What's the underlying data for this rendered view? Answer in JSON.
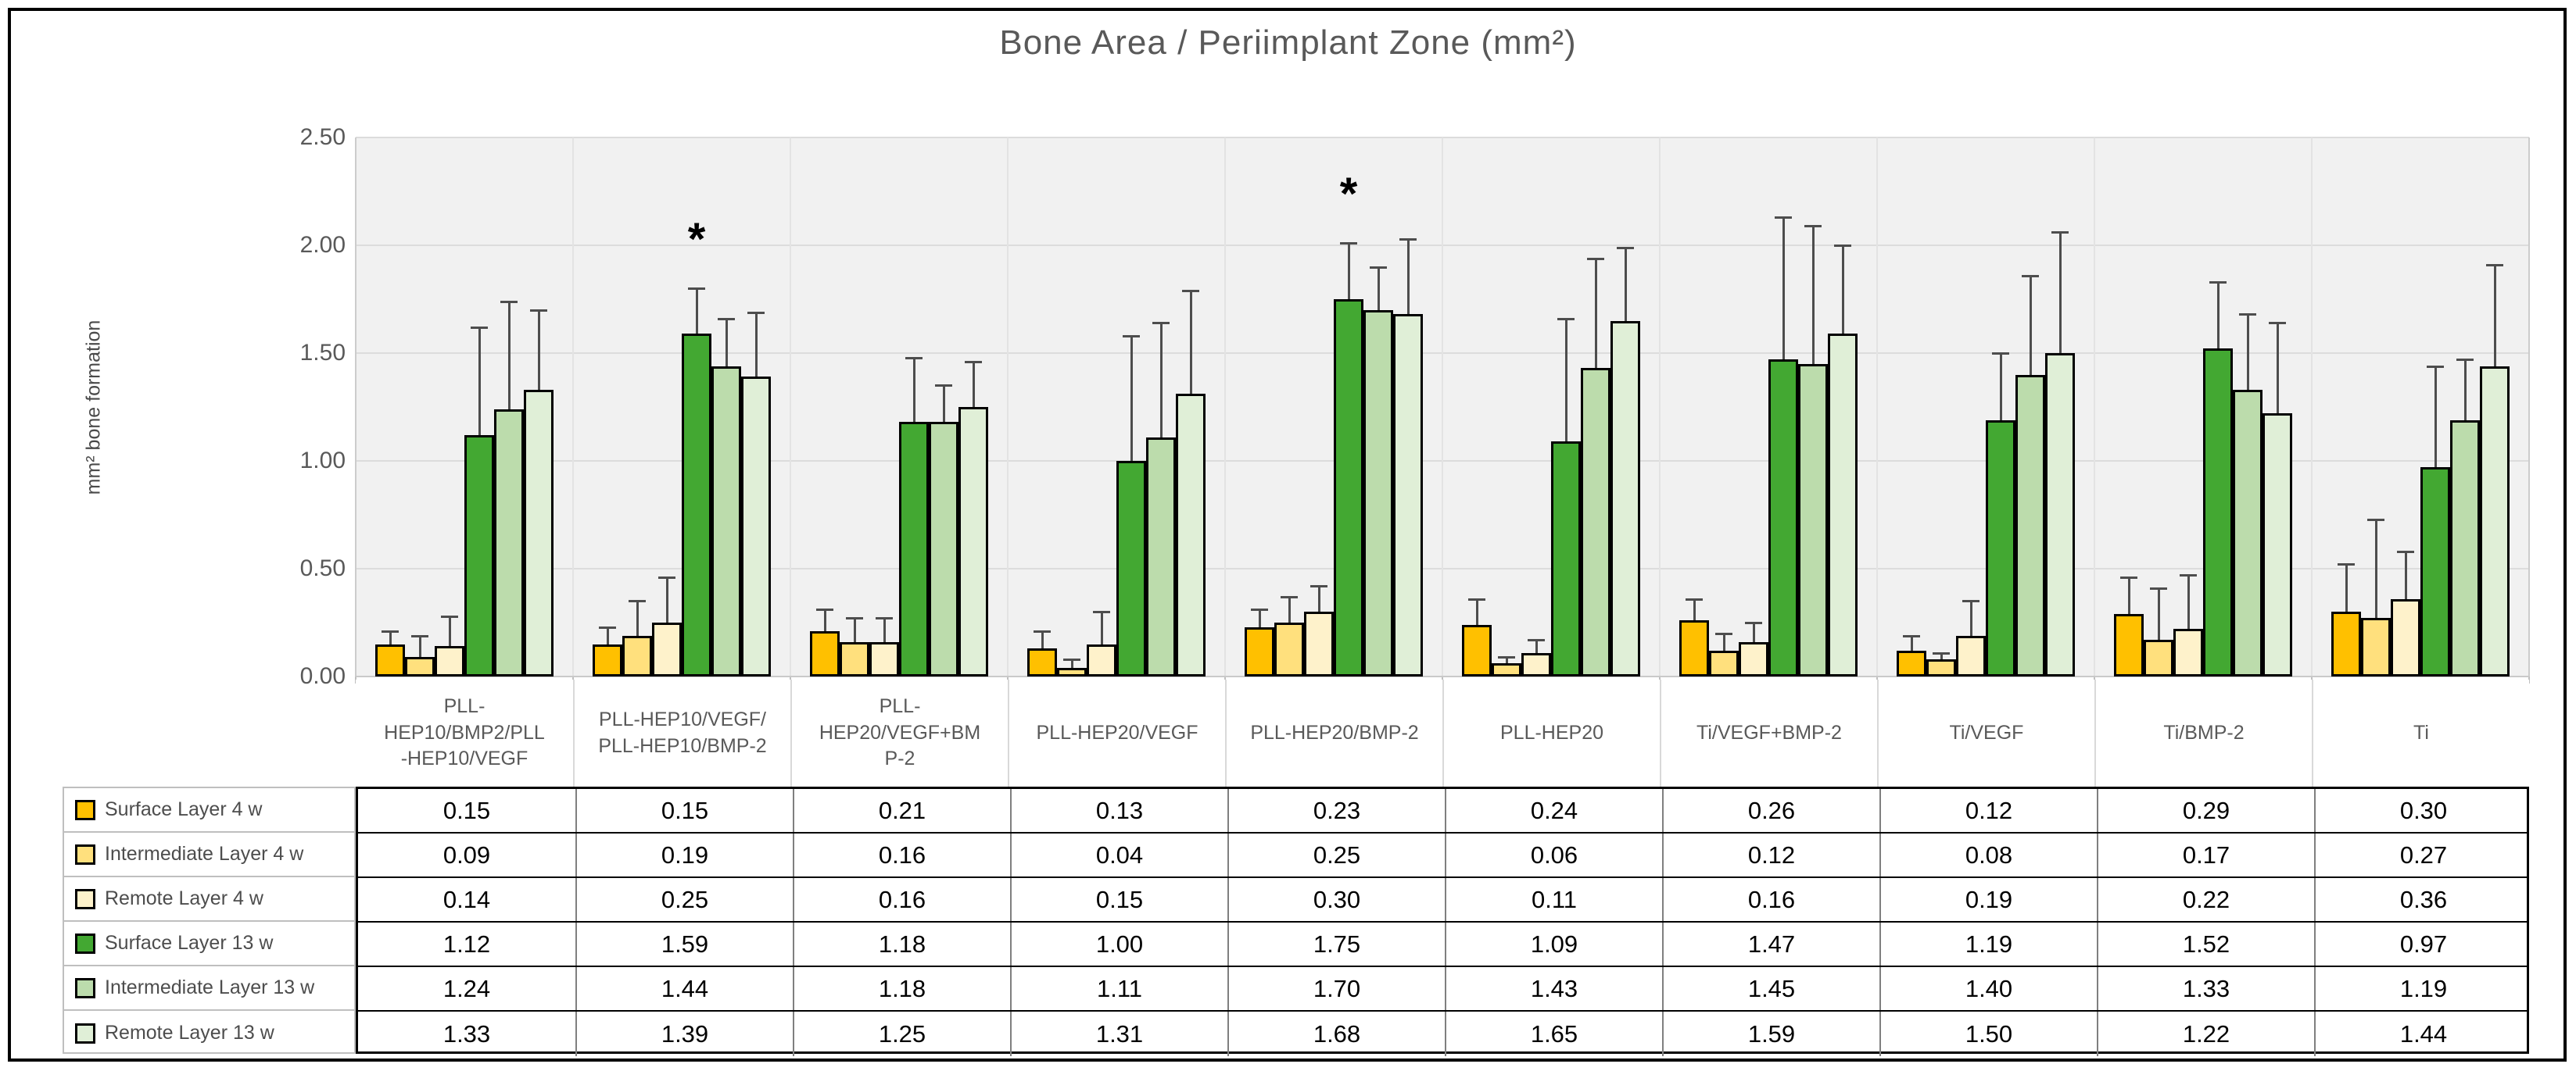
{
  "chart_data": {
    "type": "bar",
    "title": "Bone Area / Periimplant Zone (mm²)",
    "ylabel": "mm²  bone formation",
    "xlabel": "",
    "ylim": [
      0,
      2.5
    ],
    "ytick_step": 0.5,
    "ytick_labels": [
      "0.00",
      "0.50",
      "1.00",
      "1.50",
      "2.00",
      "2.50"
    ],
    "grid": true,
    "legend_position": "left-of-data-table",
    "categories": [
      {
        "label": "PLL-HEP10/BMP2/PLL-HEP10/VEGF",
        "lines": [
          "PLL-",
          "HEP10/BMP2/PLL",
          "-HEP10/VEGF"
        ]
      },
      {
        "label": "PLL-HEP10/VEGF/PLL-HEP10/BMP-2",
        "lines": [
          "PLL-HEP10/VEGF/",
          "PLL-HEP10/BMP-2"
        ]
      },
      {
        "label": "PLL-HEP20/VEGF+BMP-2",
        "lines": [
          "PLL-",
          "HEP20/VEGF+BM",
          "P-2"
        ]
      },
      {
        "label": "PLL-HEP20/VEGF",
        "lines": [
          "PLL-HEP20/VEGF"
        ]
      },
      {
        "label": "PLL-HEP20/BMP-2",
        "lines": [
          "PLL-HEP20/BMP-2"
        ]
      },
      {
        "label": "PLL-HEP20",
        "lines": [
          "PLL-HEP20"
        ]
      },
      {
        "label": "Ti/VEGF+BMP-2",
        "lines": [
          "Ti/VEGF+BMP-2"
        ]
      },
      {
        "label": "Ti/VEGF",
        "lines": [
          "Ti/VEGF"
        ]
      },
      {
        "label": "Ti/BMP-2",
        "lines": [
          "Ti/BMP-2"
        ]
      },
      {
        "label": "Ti",
        "lines": [
          "Ti"
        ]
      }
    ],
    "series": [
      {
        "name": "Surface Layer 4 w",
        "color": "#FFC000",
        "values": [
          0.15,
          0.15,
          0.21,
          0.13,
          0.23,
          0.24,
          0.26,
          0.12,
          0.29,
          0.3
        ],
        "error_up": [
          0.06,
          0.08,
          0.1,
          0.08,
          0.08,
          0.12,
          0.1,
          0.07,
          0.17,
          0.22
        ]
      },
      {
        "name": "Intermediate Layer 4 w",
        "color": "#FFE07D",
        "values": [
          0.09,
          0.19,
          0.16,
          0.04,
          0.25,
          0.06,
          0.12,
          0.08,
          0.17,
          0.27
        ],
        "error_up": [
          0.1,
          0.16,
          0.11,
          0.04,
          0.12,
          0.03,
          0.08,
          0.03,
          0.24,
          0.46
        ]
      },
      {
        "name": "Remote Layer 4 w",
        "color": "#FEF2CB",
        "values": [
          0.14,
          0.25,
          0.16,
          0.15,
          0.3,
          0.11,
          0.16,
          0.19,
          0.22,
          0.36
        ],
        "error_up": [
          0.14,
          0.21,
          0.11,
          0.15,
          0.12,
          0.06,
          0.09,
          0.16,
          0.25,
          0.22
        ]
      },
      {
        "name": "Surface Layer 13 w",
        "color": "#43A832",
        "values": [
          1.12,
          1.59,
          1.18,
          1.0,
          1.75,
          1.09,
          1.47,
          1.19,
          1.52,
          0.97
        ],
        "error_up": [
          0.5,
          0.21,
          0.3,
          0.58,
          0.26,
          0.57,
          0.66,
          0.31,
          0.31,
          0.47
        ]
      },
      {
        "name": "Intermediate Layer 13 w",
        "color": "#BCDCAC",
        "values": [
          1.24,
          1.44,
          1.18,
          1.11,
          1.7,
          1.43,
          1.45,
          1.4,
          1.33,
          1.19
        ],
        "error_up": [
          0.5,
          0.22,
          0.17,
          0.53,
          0.2,
          0.51,
          0.64,
          0.46,
          0.35,
          0.28
        ]
      },
      {
        "name": "Remote Layer 13 w",
        "color": "#E0EFD7",
        "values": [
          1.33,
          1.39,
          1.25,
          1.31,
          1.68,
          1.65,
          1.59,
          1.5,
          1.22,
          1.44
        ],
        "error_up": [
          0.37,
          0.3,
          0.21,
          0.48,
          0.35,
          0.34,
          0.41,
          0.56,
          0.42,
          0.47
        ]
      }
    ],
    "annotations": [
      {
        "text": "*",
        "category_index": 1,
        "series_index": 3
      },
      {
        "text": "*",
        "category_index": 4,
        "series_index": 3
      }
    ],
    "value_format_decimals": 2
  }
}
